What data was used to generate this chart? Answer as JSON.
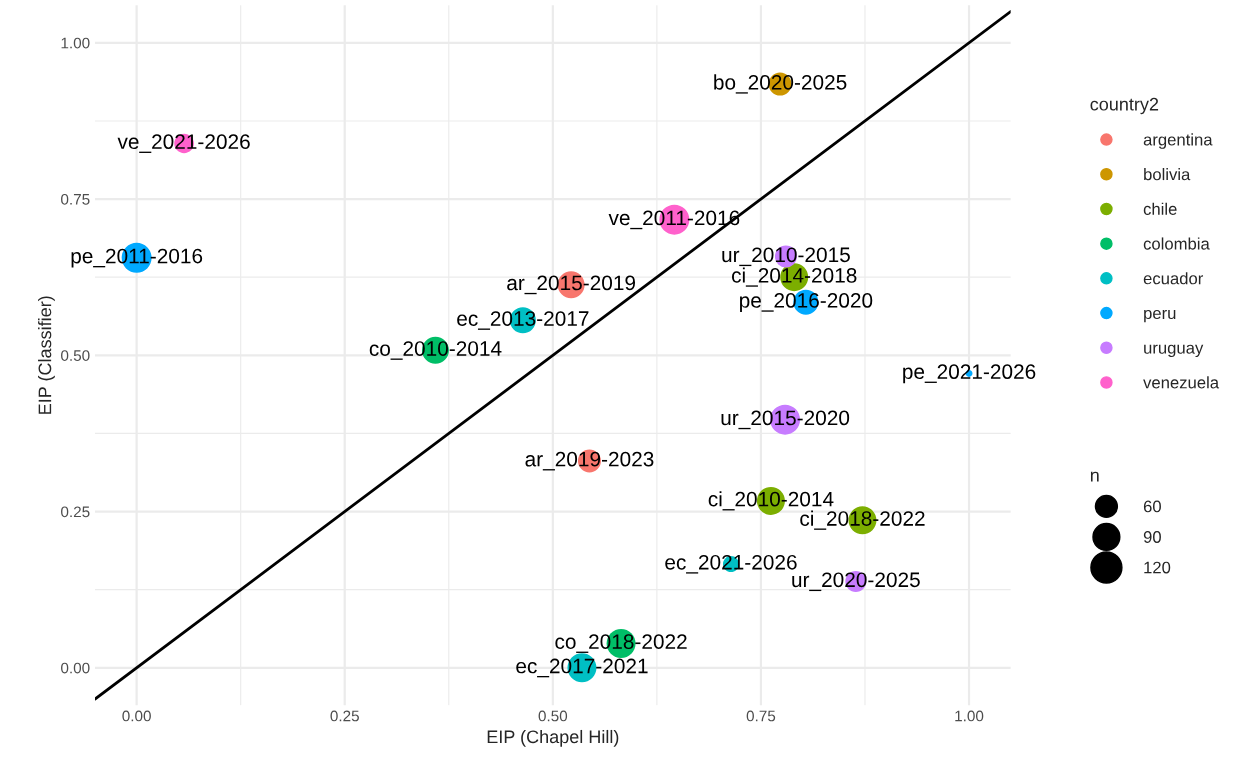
{
  "chart_data": {
    "type": "bubble",
    "xlabel": "EIP (Chapel Hill)",
    "ylabel": "EIP (Classifier)",
    "legend_title": [
      "country2",
      "n"
    ],
    "xlim": [
      -0.05,
      1.05
    ],
    "ylim": [
      -0.06,
      1.06
    ],
    "xticks": [
      {
        "value": 0,
        "label": "0.00"
      },
      {
        "value": 0.25,
        "label": "0.25"
      },
      {
        "value": 0.5,
        "label": "0.50"
      },
      {
        "value": 0.75,
        "label": "0.75"
      },
      {
        "value": 1,
        "label": "1.00"
      }
    ],
    "yticks": [
      {
        "value": 0,
        "label": "0.00"
      },
      {
        "value": 0.25,
        "label": "0.25"
      },
      {
        "value": 0.5,
        "label": "0.50"
      },
      {
        "value": 0.75,
        "label": "0.75"
      },
      {
        "value": 1,
        "label": "1.00"
      }
    ],
    "grid": true,
    "legend": "right",
    "marker": "circle",
    "size_legend": [
      60,
      90,
      120
    ],
    "series": [
      {
        "name": "argentina",
        "color": "#f8766d",
        "x": [
          0.522,
          0.544
        ],
        "values": [
          0.613,
          0.331
        ],
        "sizes": [
          91,
          66
        ]
      },
      {
        "name": "bolivia",
        "color": "#cd9600",
        "x": [
          0.773
        ],
        "values": [
          0.934
        ],
        "sizes": [
          66
        ]
      },
      {
        "name": "chile",
        "color": "#7cae00",
        "x": [
          0.79,
          0.762,
          0.872
        ],
        "values": [
          0.625,
          0.267,
          0.236
        ],
        "sizes": [
          98,
          98,
          98
        ]
      },
      {
        "name": "colombia",
        "color": "#00be67",
        "x": [
          0.359,
          0.582
        ],
        "values": [
          0.508,
          0.039
        ],
        "sizes": [
          91,
          105
        ]
      },
      {
        "name": "ecuador",
        "color": "#00bfc4",
        "x": [
          0.464,
          0.714,
          0.535
        ],
        "values": [
          0.556,
          0.166,
          0.0
        ],
        "sizes": [
          85,
          32,
          105
        ]
      },
      {
        "name": "peru",
        "color": "#00a9ff",
        "x": [
          0.0,
          0.804,
          1.0
        ],
        "values": [
          0.656,
          0.585,
          0.471
        ],
        "sizes": [
          112,
          78,
          6
        ]
      },
      {
        "name": "uruguay",
        "color": "#c77cff",
        "x": [
          0.78,
          0.779,
          0.864
        ],
        "values": [
          0.658,
          0.397,
          0.138
        ],
        "sizes": [
          60,
          112,
          55
        ]
      },
      {
        "name": "venezuela",
        "color": "#ff61cc",
        "x": [
          0.057,
          0.646
        ],
        "values": [
          0.839,
          0.717
        ],
        "sizes": [
          48,
          112
        ]
      },
      {
        "type": "line",
        "marker": "none",
        "color": "#000000",
        "x": [
          -0.05,
          1.05
        ],
        "values": [
          -0.05,
          1.05
        ]
      }
    ],
    "annotations": [
      {
        "text": "ar_2015-2019",
        "x": 0.522,
        "y": 0.613
      },
      {
        "text": "ar_2019-2023",
        "x": 0.544,
        "y": 0.331
      },
      {
        "text": "bo_2020-2025",
        "x": 0.773,
        "y": 0.934
      },
      {
        "text": "ci_2014-2018",
        "x": 0.79,
        "y": 0.625
      },
      {
        "text": "ci_2010-2014",
        "x": 0.762,
        "y": 0.267
      },
      {
        "text": "ci_2018-2022",
        "x": 0.872,
        "y": 0.236
      },
      {
        "text": "co_2010-2014",
        "x": 0.359,
        "y": 0.508
      },
      {
        "text": "co_2018-2022",
        "x": 0.582,
        "y": 0.039
      },
      {
        "text": "ec_2013-2017",
        "x": 0.464,
        "y": 0.556
      },
      {
        "text": "ec_2021-2026",
        "x": 0.714,
        "y": 0.166
      },
      {
        "text": "ec_2017-2021",
        "x": 0.535,
        "y": 0.0
      },
      {
        "text": "pe_2011-2016",
        "x": 0.0,
        "y": 0.656
      },
      {
        "text": "pe_2016-2020",
        "x": 0.804,
        "y": 0.585
      },
      {
        "text": "pe_2021-2026",
        "x": 1.0,
        "y": 0.471
      },
      {
        "text": "ur_2010-2015",
        "x": 0.78,
        "y": 0.658
      },
      {
        "text": "ur_2015-2020",
        "x": 0.779,
        "y": 0.397
      },
      {
        "text": "ur_2020-2025",
        "x": 0.864,
        "y": 0.138
      },
      {
        "text": "ve_2021-2026",
        "x": 0.057,
        "y": 0.839
      },
      {
        "text": "ve_2011-2016",
        "x": 0.646,
        "y": 0.717
      }
    ]
  }
}
